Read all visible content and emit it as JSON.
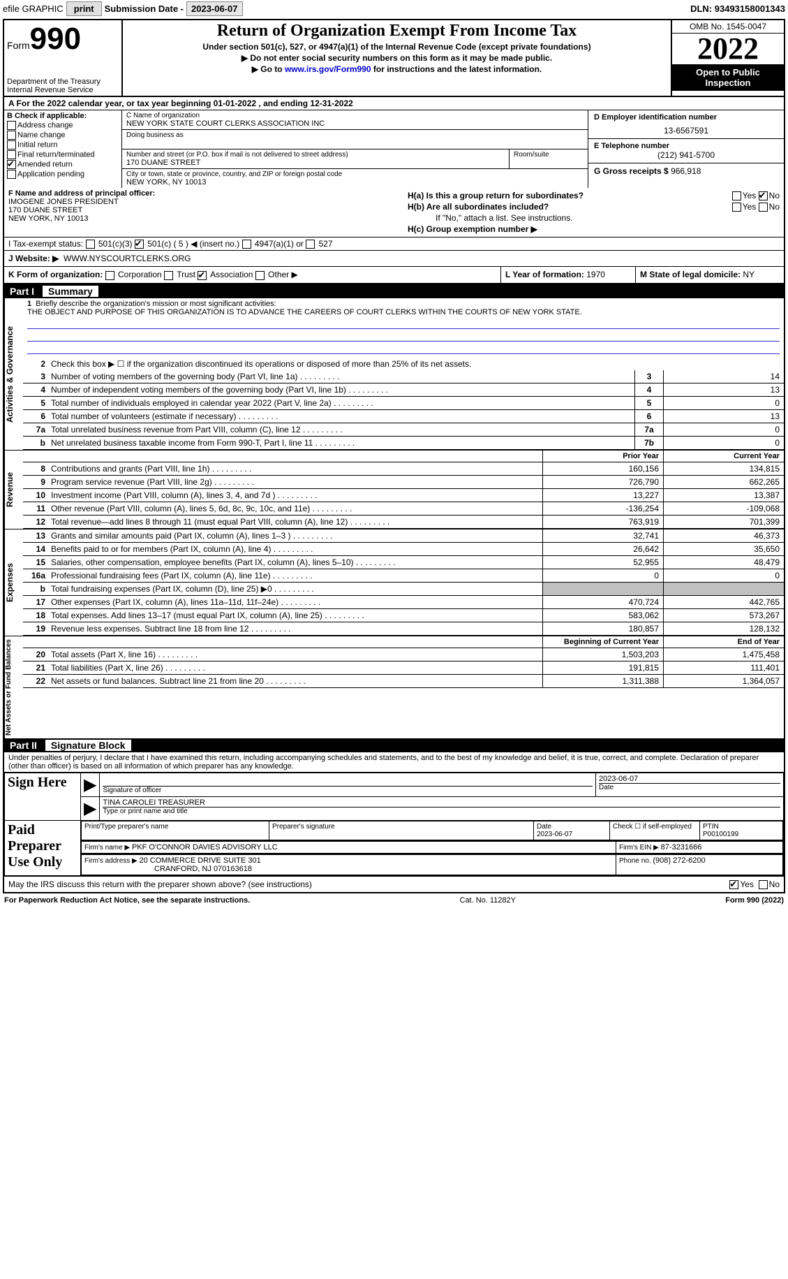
{
  "topbar": {
    "efile": "efile GRAPHIC",
    "print": "print",
    "subdate_label": "Submission Date - ",
    "subdate": "2023-06-07",
    "dln_label": "DLN: ",
    "dln": "93493158001343"
  },
  "header": {
    "form_word": "Form",
    "form_num": "990",
    "dept": "Department of the Treasury\nInternal Revenue Service",
    "title": "Return of Organization Exempt From Income Tax",
    "sub1": "Under section 501(c), 527, or 4947(a)(1) of the Internal Revenue Code (except private foundations)",
    "sub2": "▶ Do not enter social security numbers on this form as it may be made public.",
    "sub3_pre": "▶ Go to ",
    "sub3_link": "www.irs.gov/Form990",
    "sub3_post": " for instructions and the latest information.",
    "omb": "OMB No. 1545-0047",
    "year": "2022",
    "open": "Open to Public Inspection"
  },
  "row_a": {
    "pre": "A For the 2022 calendar year, or tax year beginning ",
    "d1": "01-01-2022",
    "mid": "   , and ending ",
    "d2": "12-31-2022"
  },
  "col_b": {
    "head": "B Check if applicable:",
    "items": [
      "Address change",
      "Name change",
      "Initial return",
      "Final return/terminated",
      "Amended return",
      "Application pending"
    ],
    "checked": [
      false,
      false,
      false,
      false,
      true,
      false
    ]
  },
  "col_c": {
    "name_lbl": "C Name of organization",
    "name": "NEW YORK STATE COURT CLERKS ASSOCIATION INC",
    "dba_lbl": "Doing business as",
    "addr_lbl": "Number and street (or P.O. box if mail is not delivered to street address)",
    "addr": "170 DUANE STREET",
    "room_lbl": "Room/suite",
    "city_lbl": "City or town, state or province, country, and ZIP or foreign postal code",
    "city": "NEW YORK, NY  10013"
  },
  "col_d": {
    "ein_lbl": "D Employer identification number",
    "ein": "13-6567591",
    "tel_lbl": "E Telephone number",
    "tel": "(212) 941-5700",
    "gross_lbl": "G Gross receipts $ ",
    "gross": "966,918"
  },
  "col_f": {
    "lbl": "F Name and address of principal officer:",
    "name": "IMOGENE JONES PRESIDENT",
    "addr1": "170 DUANE STREET",
    "addr2": "NEW YORK, NY  10013"
  },
  "col_h": {
    "a": "H(a)  Is this a group return for subordinates?",
    "b": "H(b)  Are all subordinates included?",
    "bnote": "If \"No,\" attach a list. See instructions.",
    "c": "H(c)  Group exemption number ▶"
  },
  "row_i": {
    "lbl": "I   Tax-exempt status:",
    "opt1": "501(c)(3)",
    "opt2": "501(c) ( 5 ) ◀ (insert no.)",
    "opt3": "4947(a)(1) or",
    "opt4": "527"
  },
  "row_j": {
    "lbl": "J   Website: ▶",
    "val": "WWW.NYSCOURTCLERKS.ORG"
  },
  "row_k": {
    "lbl": "K Form of organization:",
    "opts": [
      "Corporation",
      "Trust",
      "Association",
      "Other ▶"
    ],
    "checked": [
      false,
      false,
      true,
      false
    ],
    "l_lbl": "L Year of formation: ",
    "l_val": "1970",
    "m_lbl": "M State of legal domicile: ",
    "m_val": "NY"
  },
  "part1": {
    "num": "Part I",
    "title": "Summary",
    "q1_lbl": "1",
    "q1": "Briefly describe the organization's mission or most significant activities:",
    "mission": "THE OBJECT AND PURPOSE OF THIS ORGANIZATION IS TO ADVANCE THE CAREERS OF COURT CLERKS WITHIN THE COURTS OF NEW YORK STATE.",
    "q2_lbl": "2",
    "q2": "Check this box ▶ ☐ if the organization discontinued its operations or disposed of more than 25% of its net assets.",
    "vlabel_ag": "Activities & Governance",
    "vlabel_rev": "Revenue",
    "vlabel_exp": "Expenses",
    "vlabel_na": "Net Assets or Fund Balances",
    "lines_ag": [
      {
        "n": "3",
        "t": "Number of voting members of the governing body (Part VI, line 1a)",
        "box": "3",
        "v": "14"
      },
      {
        "n": "4",
        "t": "Number of independent voting members of the governing body (Part VI, line 1b)",
        "box": "4",
        "v": "13"
      },
      {
        "n": "5",
        "t": "Total number of individuals employed in calendar year 2022 (Part V, line 2a)",
        "box": "5",
        "v": "0"
      },
      {
        "n": "6",
        "t": "Total number of volunteers (estimate if necessary)",
        "box": "6",
        "v": "13"
      },
      {
        "n": "7a",
        "t": "Total unrelated business revenue from Part VIII, column (C), line 12",
        "box": "7a",
        "v": "0"
      },
      {
        "n": "b",
        "t": "Net unrelated business taxable income from Form 990-T, Part I, line 11",
        "box": "7b",
        "v": "0"
      }
    ],
    "col_py": "Prior Year",
    "col_cy": "Current Year",
    "lines_rev": [
      {
        "n": "8",
        "t": "Contributions and grants (Part VIII, line 1h)",
        "py": "160,156",
        "cy": "134,815"
      },
      {
        "n": "9",
        "t": "Program service revenue (Part VIII, line 2g)",
        "py": "726,790",
        "cy": "662,265"
      },
      {
        "n": "10",
        "t": "Investment income (Part VIII, column (A), lines 3, 4, and 7d )",
        "py": "13,227",
        "cy": "13,387"
      },
      {
        "n": "11",
        "t": "Other revenue (Part VIII, column (A), lines 5, 6d, 8c, 9c, 10c, and 11e)",
        "py": "-136,254",
        "cy": "-109,068"
      },
      {
        "n": "12",
        "t": "Total revenue—add lines 8 through 11 (must equal Part VIII, column (A), line 12)",
        "py": "763,919",
        "cy": "701,399"
      }
    ],
    "lines_exp": [
      {
        "n": "13",
        "t": "Grants and similar amounts paid (Part IX, column (A), lines 1–3 )",
        "py": "32,741",
        "cy": "46,373"
      },
      {
        "n": "14",
        "t": "Benefits paid to or for members (Part IX, column (A), line 4)",
        "py": "26,642",
        "cy": "35,650"
      },
      {
        "n": "15",
        "t": "Salaries, other compensation, employee benefits (Part IX, column (A), lines 5–10)",
        "py": "52,955",
        "cy": "48,479"
      },
      {
        "n": "16a",
        "t": "Professional fundraising fees (Part IX, column (A), line 11e)",
        "py": "0",
        "cy": "0"
      },
      {
        "n": "b",
        "t": "Total fundraising expenses (Part IX, column (D), line 25) ▶0",
        "py": "",
        "cy": "",
        "grey": true
      },
      {
        "n": "17",
        "t": "Other expenses (Part IX, column (A), lines 11a–11d, 11f–24e)",
        "py": "470,724",
        "cy": "442,765"
      },
      {
        "n": "18",
        "t": "Total expenses. Add lines 13–17 (must equal Part IX, column (A), line 25)",
        "py": "583,062",
        "cy": "573,267"
      },
      {
        "n": "19",
        "t": "Revenue less expenses. Subtract line 18 from line 12",
        "py": "180,857",
        "cy": "128,132"
      }
    ],
    "col_boy": "Beginning of Current Year",
    "col_eoy": "End of Year",
    "lines_na": [
      {
        "n": "20",
        "t": "Total assets (Part X, line 16)",
        "py": "1,503,203",
        "cy": "1,475,458"
      },
      {
        "n": "21",
        "t": "Total liabilities (Part X, line 26)",
        "py": "191,815",
        "cy": "111,401"
      },
      {
        "n": "22",
        "t": "Net assets or fund balances. Subtract line 21 from line 20",
        "py": "1,311,388",
        "cy": "1,364,057"
      }
    ]
  },
  "part2": {
    "num": "Part II",
    "title": "Signature Block",
    "penalty": "Under penalties of perjury, I declare that I have examined this return, including accompanying schedules and statements, and to the best of my knowledge and belief, it is true, correct, and complete. Declaration of preparer (other than officer) is based on all information of which preparer has any knowledge.",
    "sign_here": "Sign Here",
    "sig_off": "Signature of officer",
    "sig_date": "2023-06-07",
    "date_lbl": "Date",
    "officer": "TINA CAROLEI  TREASURER",
    "officer_lbl": "Type or print name and title",
    "paid": "Paid Preparer Use Only",
    "prep_name_lbl": "Print/Type preparer's name",
    "prep_sig_lbl": "Preparer's signature",
    "prep_date_lbl": "Date",
    "prep_date": "2023-06-07",
    "check_lbl": "Check ☐ if self-employed",
    "ptin_lbl": "PTIN",
    "ptin": "P00100199",
    "firm_name_lbl": "Firm's name    ▶ ",
    "firm_name": "PKF O'CONNOR DAVIES ADVISORY LLC",
    "firm_ein_lbl": "Firm's EIN ▶ ",
    "firm_ein": "87-3231666",
    "firm_addr_lbl": "Firm's address ▶ ",
    "firm_addr1": "20 COMMERCE DRIVE SUITE 301",
    "firm_addr2": "CRANFORD, NJ  070163618",
    "phone_lbl": "Phone no. ",
    "phone": "(908) 272-6200",
    "discuss": "May the IRS discuss this return with the preparer shown above? (see instructions)",
    "yes": "Yes",
    "no": "No"
  },
  "footer": {
    "left": "For Paperwork Reduction Act Notice, see the separate instructions.",
    "mid": "Cat. No. 11282Y",
    "right": "Form 990 (2022)"
  }
}
